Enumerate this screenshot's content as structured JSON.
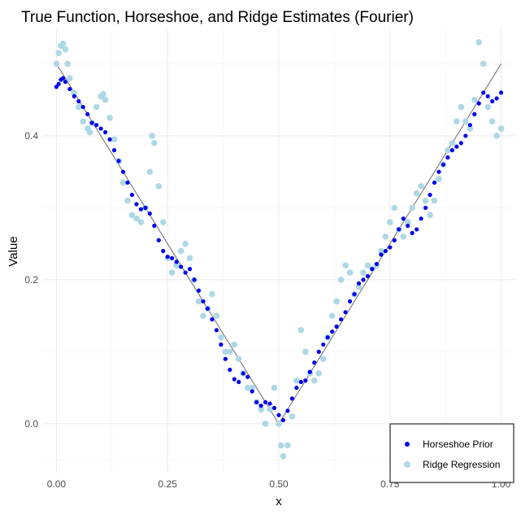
{
  "chart_data": {
    "type": "scatter",
    "title": "True Function, Horseshoe, and Ridge Estimates (Fourier)",
    "xlabel": "x",
    "ylabel": "Value",
    "xlim": [
      -0.03,
      1.03
    ],
    "ylim": [
      -0.068,
      0.548
    ],
    "x_ticks": [
      0,
      0.25,
      0.5,
      0.75,
      1
    ],
    "x_tick_labels": [
      "0.00",
      "0.25",
      "0.50",
      "0.75",
      "1.00"
    ],
    "y_ticks": [
      0,
      0.2,
      0.4
    ],
    "y_tick_labels": [
      "0.0",
      "0.2",
      "0.4"
    ],
    "grid": true,
    "legend_position": "bottom-right",
    "true_function": {
      "color": "#808080",
      "x": [
        0,
        0.5,
        1
      ],
      "y": [
        0.5,
        0,
        0.5
      ]
    },
    "series": [
      {
        "name": "Horseshoe Prior",
        "color": "#0000ee",
        "x": [
          0.0,
          0.005,
          0.01,
          0.015,
          0.02,
          0.03,
          0.04,
          0.05,
          0.06,
          0.07,
          0.08,
          0.09,
          0.1,
          0.11,
          0.12,
          0.13,
          0.14,
          0.15,
          0.16,
          0.17,
          0.18,
          0.19,
          0.2,
          0.21,
          0.22,
          0.23,
          0.24,
          0.25,
          0.26,
          0.27,
          0.28,
          0.29,
          0.3,
          0.31,
          0.32,
          0.33,
          0.34,
          0.35,
          0.36,
          0.37,
          0.38,
          0.39,
          0.4,
          0.41,
          0.42,
          0.43,
          0.44,
          0.45,
          0.46,
          0.47,
          0.48,
          0.49,
          0.5,
          0.51,
          0.52,
          0.53,
          0.54,
          0.55,
          0.56,
          0.57,
          0.58,
          0.59,
          0.6,
          0.61,
          0.62,
          0.63,
          0.64,
          0.65,
          0.66,
          0.67,
          0.68,
          0.69,
          0.7,
          0.71,
          0.72,
          0.73,
          0.74,
          0.75,
          0.76,
          0.77,
          0.78,
          0.79,
          0.8,
          0.81,
          0.82,
          0.83,
          0.84,
          0.85,
          0.86,
          0.87,
          0.88,
          0.89,
          0.9,
          0.91,
          0.92,
          0.93,
          0.94,
          0.95,
          0.96,
          0.97,
          0.98,
          0.99,
          1.0
        ],
        "y": [
          0.468,
          0.472,
          0.478,
          0.48,
          0.475,
          0.465,
          0.455,
          0.448,
          0.44,
          0.43,
          0.418,
          0.415,
          0.41,
          0.405,
          0.395,
          0.38,
          0.365,
          0.35,
          0.335,
          0.318,
          0.305,
          0.298,
          0.3,
          0.292,
          0.275,
          0.255,
          0.24,
          0.232,
          0.23,
          0.225,
          0.218,
          0.21,
          0.215,
          0.2,
          0.185,
          0.17,
          0.16,
          0.145,
          0.13,
          0.11,
          0.09,
          0.075,
          0.062,
          0.058,
          0.07,
          0.065,
          0.045,
          0.03,
          0.025,
          0.03,
          0.028,
          0.022,
          0.012,
          0.005,
          0.018,
          0.035,
          0.05,
          0.058,
          0.06,
          0.072,
          0.085,
          0.1,
          0.11,
          0.12,
          0.128,
          0.135,
          0.145,
          0.155,
          0.17,
          0.18,
          0.195,
          0.2,
          0.205,
          0.215,
          0.222,
          0.235,
          0.24,
          0.245,
          0.255,
          0.27,
          0.285,
          0.275,
          0.265,
          0.27,
          0.285,
          0.3,
          0.318,
          0.335,
          0.35,
          0.36,
          0.37,
          0.38,
          0.385,
          0.39,
          0.4,
          0.415,
          0.43,
          0.445,
          0.46,
          0.455,
          0.448,
          0.452,
          0.46
        ]
      },
      {
        "name": "Ridge Regression",
        "color": "#add8e6",
        "x": [
          0.0,
          0.005,
          0.01,
          0.015,
          0.02,
          0.025,
          0.03,
          0.04,
          0.05,
          0.06,
          0.07,
          0.075,
          0.08,
          0.09,
          0.1,
          0.105,
          0.11,
          0.12,
          0.13,
          0.14,
          0.15,
          0.16,
          0.17,
          0.18,
          0.19,
          0.2,
          0.21,
          0.215,
          0.22,
          0.23,
          0.24,
          0.25,
          0.26,
          0.27,
          0.28,
          0.29,
          0.3,
          0.31,
          0.32,
          0.33,
          0.34,
          0.35,
          0.36,
          0.37,
          0.38,
          0.39,
          0.4,
          0.41,
          0.42,
          0.43,
          0.44,
          0.45,
          0.46,
          0.47,
          0.48,
          0.49,
          0.5,
          0.505,
          0.51,
          0.52,
          0.53,
          0.54,
          0.55,
          0.56,
          0.57,
          0.58,
          0.59,
          0.6,
          0.61,
          0.62,
          0.63,
          0.64,
          0.65,
          0.66,
          0.67,
          0.68,
          0.69,
          0.7,
          0.71,
          0.72,
          0.73,
          0.74,
          0.75,
          0.76,
          0.77,
          0.78,
          0.79,
          0.8,
          0.81,
          0.82,
          0.83,
          0.84,
          0.85,
          0.86,
          0.87,
          0.88,
          0.89,
          0.9,
          0.91,
          0.92,
          0.93,
          0.94,
          0.95,
          0.96,
          0.97,
          0.98,
          0.99,
          1.0
        ],
        "y": [
          0.5,
          0.515,
          0.525,
          0.528,
          0.52,
          0.5,
          0.48,
          0.46,
          0.44,
          0.42,
          0.41,
          0.405,
          0.418,
          0.44,
          0.455,
          0.458,
          0.45,
          0.425,
          0.395,
          0.365,
          0.335,
          0.31,
          0.29,
          0.285,
          0.28,
          0.3,
          0.35,
          0.4,
          0.39,
          0.33,
          0.28,
          0.23,
          0.21,
          0.22,
          0.24,
          0.25,
          0.23,
          0.2,
          0.17,
          0.15,
          0.16,
          0.18,
          0.15,
          0.12,
          0.1,
          0.1,
          0.11,
          0.09,
          0.07,
          0.05,
          0.05,
          0.03,
          0.02,
          0.0,
          0.02,
          0.05,
          0.0,
          -0.03,
          -0.045,
          -0.03,
          0.01,
          0.06,
          0.13,
          0.1,
          0.07,
          0.06,
          0.07,
          0.09,
          0.12,
          0.15,
          0.17,
          0.2,
          0.22,
          0.21,
          0.18,
          0.19,
          0.21,
          0.22,
          0.215,
          0.22,
          0.24,
          0.26,
          0.28,
          0.3,
          0.27,
          0.26,
          0.28,
          0.3,
          0.32,
          0.33,
          0.31,
          0.29,
          0.31,
          0.34,
          0.36,
          0.38,
          0.39,
          0.42,
          0.44,
          0.42,
          0.41,
          0.45,
          0.53,
          0.5,
          0.44,
          0.42,
          0.4,
          0.41
        ]
      }
    ]
  }
}
